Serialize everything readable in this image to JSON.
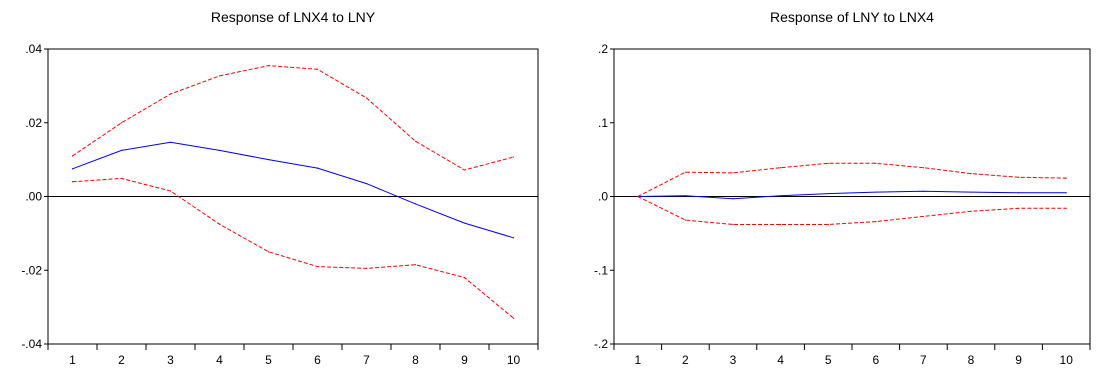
{
  "chart_data": [
    {
      "type": "line",
      "title": "Response of LNX4 to LNY",
      "xlabel": "",
      "ylabel": "",
      "x": [
        1,
        2,
        3,
        4,
        5,
        6,
        7,
        8,
        9,
        10
      ],
      "ylim": [
        -0.04,
        0.04
      ],
      "yticks": [
        -0.04,
        -0.02,
        0.0,
        0.02,
        0.04
      ],
      "ytick_labels": [
        "-.04",
        "-.02",
        ".00",
        ".02",
        ".04"
      ],
      "grid": false,
      "zero_line": true,
      "series": [
        {
          "role": "response",
          "color": "#0000ff",
          "dash": false,
          "values": [
            0.0075,
            0.0125,
            0.0147,
            0.0125,
            0.01,
            0.0077,
            0.0035,
            -0.002,
            -0.0072,
            -0.0112
          ]
        },
        {
          "role": "upper band",
          "color": "#ff0000",
          "dash": true,
          "values": [
            0.011,
            0.02,
            0.0278,
            0.0327,
            0.0355,
            0.0345,
            0.0267,
            0.015,
            0.0072,
            0.0107
          ]
        },
        {
          "role": "lower band",
          "color": "#ff0000",
          "dash": true,
          "values": [
            0.004,
            0.0049,
            0.0015,
            -0.0075,
            -0.015,
            -0.019,
            -0.0195,
            -0.0185,
            -0.022,
            -0.033
          ]
        }
      ]
    },
    {
      "type": "line",
      "title": "Response of LNY to LNX4",
      "xlabel": "",
      "ylabel": "",
      "x": [
        1,
        2,
        3,
        4,
        5,
        6,
        7,
        8,
        9,
        10
      ],
      "ylim": [
        -0.2,
        0.2
      ],
      "yticks": [
        -0.2,
        -0.1,
        0.0,
        0.1,
        0.2
      ],
      "ytick_labels": [
        "-.2",
        "-.1",
        ".0",
        ".1",
        ".2"
      ],
      "grid": false,
      "zero_line": true,
      "series": [
        {
          "role": "response",
          "color": "#0000ff",
          "dash": false,
          "values": [
            0.0,
            0.001,
            -0.003,
            0.001,
            0.004,
            0.006,
            0.007,
            0.006,
            0.005,
            0.005
          ]
        },
        {
          "role": "upper band",
          "color": "#ff0000",
          "dash": true,
          "values": [
            0.0,
            0.033,
            0.032,
            0.039,
            0.045,
            0.045,
            0.039,
            0.031,
            0.026,
            0.025
          ]
        },
        {
          "role": "lower band",
          "color": "#ff0000",
          "dash": true,
          "values": [
            0.0,
            -0.032,
            -0.038,
            -0.038,
            -0.038,
            -0.034,
            -0.027,
            -0.02,
            -0.016,
            -0.016
          ]
        }
      ]
    }
  ]
}
